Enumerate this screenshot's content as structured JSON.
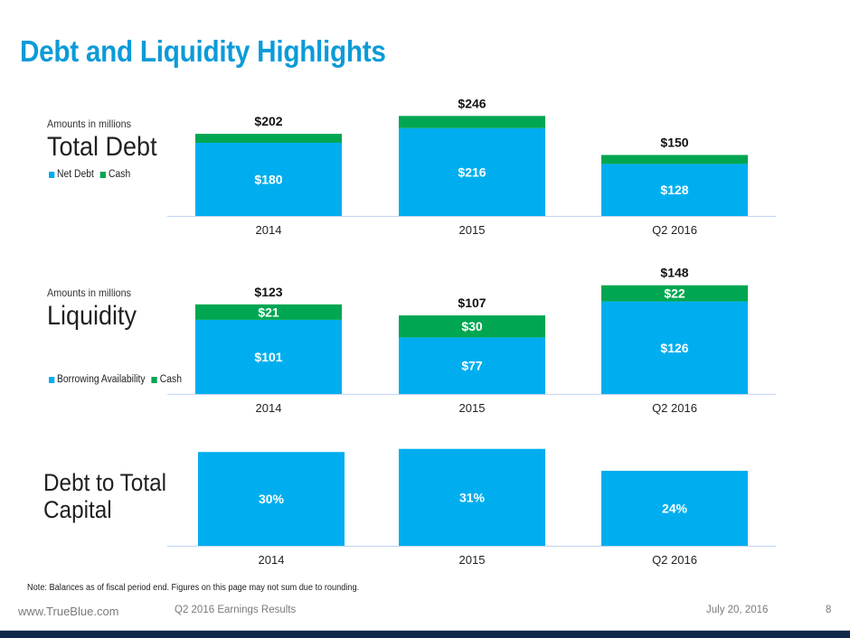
{
  "page": {
    "title": "Debt and Liquidity Highlights",
    "note": "Note: Balances as of fiscal period end. Figures on this page may not sum due to rounding.",
    "footer": {
      "url": "www.TrueBlue.com",
      "deck": "Q2 2016 Earnings Results",
      "date": "July 20, 2016",
      "page_number": "8"
    }
  },
  "colors": {
    "title": "#0b9bd8",
    "blue": "#00aeef",
    "green": "#00a651",
    "axis": "#c5d9f1",
    "footer_bar": "#10294a"
  },
  "panels": {
    "total_debt": {
      "subtitle": "Amounts in millions",
      "title": "Total Debt"
    },
    "liquidity": {
      "subtitle": "Amounts in millions",
      "title": "Liquidity"
    },
    "debt_to_capital": {
      "title_line1": "Debt to Total",
      "title_line2": "Capital"
    }
  },
  "chart_data": [
    {
      "id": "total_debt",
      "type": "bar",
      "stacked": true,
      "title": "Total Debt",
      "subtitle": "Amounts in millions",
      "categories": [
        "2014",
        "2015",
        "Q2 2016"
      ],
      "series": [
        {
          "name": "Net Debt",
          "color": "#00aeef",
          "values": [
            180,
            216,
            128
          ],
          "labels": [
            "$180",
            "$216",
            "$128"
          ],
          "show_labels": true
        },
        {
          "name": "Cash",
          "color": "#00a651",
          "values": [
            22,
            30,
            22
          ],
          "labels": [
            "",
            "",
            ""
          ],
          "show_labels": false
        }
      ],
      "totals": [
        202,
        246,
        150
      ],
      "total_labels": [
        "$202",
        "$246",
        "$150"
      ],
      "legend": [
        "Net Debt",
        "Cash"
      ],
      "legend_position": "left",
      "ylim": [
        0,
        260
      ],
      "grid": false,
      "xlabel": "",
      "ylabel": ""
    },
    {
      "id": "liquidity",
      "type": "bar",
      "stacked": true,
      "title": "Liquidity",
      "subtitle": "Amounts in millions",
      "categories": [
        "2014",
        "2015",
        "Q2 2016"
      ],
      "series": [
        {
          "name": "Borrowing Availability",
          "color": "#00aeef",
          "values": [
            101,
            77,
            126
          ],
          "labels": [
            "$101",
            "$77",
            "$126"
          ],
          "show_labels": true
        },
        {
          "name": "Cash",
          "color": "#00a651",
          "values": [
            21,
            30,
            22
          ],
          "labels": [
            "$21",
            "$30",
            "$22"
          ],
          "show_labels": true
        }
      ],
      "totals": [
        123,
        107,
        148
      ],
      "total_labels": [
        "$123",
        "$107",
        "$148"
      ],
      "legend": [
        "Borrowing Availability",
        "Cash"
      ],
      "legend_position": "left",
      "ylim": [
        0,
        155
      ],
      "grid": false,
      "xlabel": "",
      "ylabel": ""
    },
    {
      "id": "debt_to_capital",
      "type": "bar",
      "stacked": false,
      "title": "Debt to Total Capital",
      "categories": [
        "2014",
        "2015",
        "Q2 2016"
      ],
      "series": [
        {
          "name": "Debt to Total Capital",
          "color": "#00aeef",
          "values": [
            30,
            31,
            24
          ],
          "labels": [
            "30%",
            "31%",
            "24%"
          ],
          "show_labels": true
        }
      ],
      "ylim": [
        0,
        31.5
      ],
      "grid": false,
      "xlabel": "",
      "ylabel": ""
    }
  ]
}
